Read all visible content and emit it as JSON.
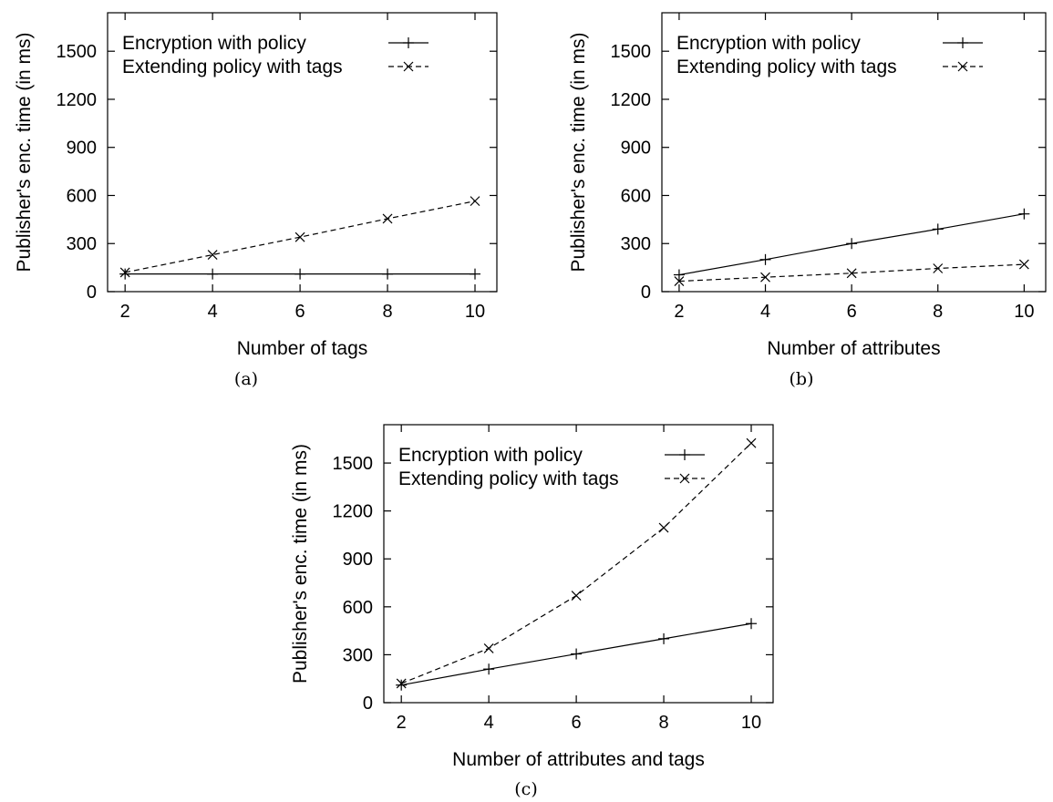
{
  "chart_data": [
    {
      "type": "line",
      "caption": "(a)",
      "xlabel": "Number of tags",
      "ylabel": "Publisher's enc. time (in ms)",
      "x": [
        2,
        4,
        6,
        8,
        10
      ],
      "xlim": [
        1.6,
        10.5
      ],
      "ylim": [
        0,
        1740
      ],
      "xticks": [
        2,
        4,
        6,
        8,
        10
      ],
      "yticks": [
        0,
        300,
        600,
        900,
        1200,
        1500
      ],
      "grid": false,
      "legend": "top-left",
      "series": [
        {
          "name": "Encryption with policy",
          "marker": "plus",
          "dash": "solid",
          "values": [
            110,
            110,
            110,
            110,
            110
          ]
        },
        {
          "name": "Extending policy with tags",
          "marker": "cross",
          "dash": "dashed",
          "values": [
            120,
            230,
            340,
            455,
            565
          ]
        }
      ]
    },
    {
      "type": "line",
      "caption": "(b)",
      "xlabel": "Number of attributes",
      "ylabel": "Publisher's enc. time (in ms)",
      "x": [
        2,
        4,
        6,
        8,
        10
      ],
      "xlim": [
        1.6,
        10.5
      ],
      "ylim": [
        0,
        1740
      ],
      "xticks": [
        2,
        4,
        6,
        8,
        10
      ],
      "yticks": [
        0,
        300,
        600,
        900,
        1200,
        1500
      ],
      "grid": false,
      "legend": "top-left",
      "series": [
        {
          "name": "Encryption with policy",
          "marker": "plus",
          "dash": "solid",
          "values": [
            105,
            200,
            300,
            390,
            485
          ]
        },
        {
          "name": "Extending policy with tags",
          "marker": "cross",
          "dash": "dashed",
          "values": [
            65,
            90,
            115,
            145,
            170
          ]
        }
      ]
    },
    {
      "type": "line",
      "caption": "(c)",
      "xlabel": "Number of attributes and tags",
      "ylabel": "Publisher's enc. time (in ms)",
      "x": [
        2,
        4,
        6,
        8,
        10
      ],
      "xlim": [
        1.6,
        10.5
      ],
      "ylim": [
        0,
        1740
      ],
      "xticks": [
        2,
        4,
        6,
        8,
        10
      ],
      "yticks": [
        0,
        300,
        600,
        900,
        1200,
        1500
      ],
      "grid": false,
      "legend": "top-left",
      "series": [
        {
          "name": "Encryption with policy",
          "marker": "plus",
          "dash": "solid",
          "values": [
            110,
            210,
            305,
            400,
            495
          ]
        },
        {
          "name": "Extending policy with tags",
          "marker": "cross",
          "dash": "dashed",
          "values": [
            120,
            340,
            670,
            1095,
            1625
          ]
        }
      ]
    }
  ]
}
